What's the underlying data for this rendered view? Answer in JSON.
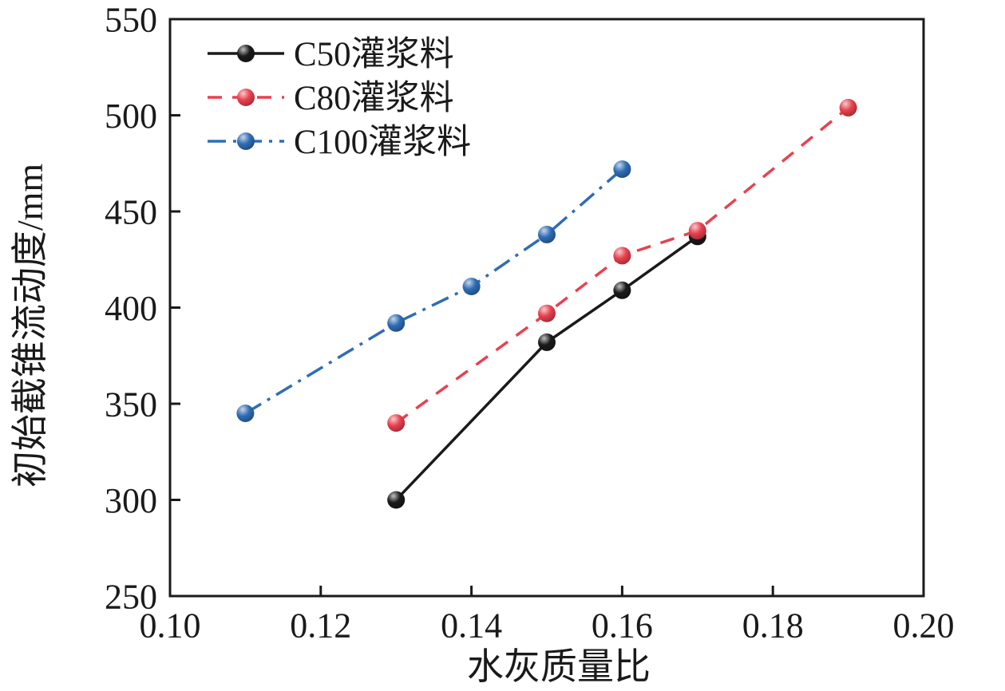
{
  "figure": {
    "background": "#ffffff",
    "text_color": "#1a1a1a"
  },
  "chart_data": {
    "type": "line",
    "title": "",
    "xlabel": "水灰质量比",
    "ylabel": "初始截锥流动度/mm",
    "xlim": [
      0.1,
      0.2
    ],
    "ylim": [
      250,
      550
    ],
    "xticks": [
      0.1,
      0.12,
      0.14,
      0.16,
      0.18,
      0.2
    ],
    "xtick_labels": [
      "0.10",
      "0.12",
      "0.14",
      "0.16",
      "0.18",
      "0.20"
    ],
    "yticks": [
      250,
      300,
      350,
      400,
      450,
      500,
      550
    ],
    "ytick_labels": [
      "250",
      "300",
      "350",
      "400",
      "450",
      "500",
      "550"
    ],
    "grid": false,
    "legend_position": "top-left",
    "series": [
      {
        "name": "C50灌浆料",
        "color": "#1a1a1a",
        "line_style": "solid",
        "marker": "ball",
        "x": [
          0.13,
          0.15,
          0.16,
          0.17
        ],
        "y": [
          300,
          382,
          409,
          437
        ]
      },
      {
        "name": "C80灌浆料",
        "color": "#e8414f",
        "line_style": "dashed",
        "marker": "ball",
        "x": [
          0.13,
          0.15,
          0.16,
          0.17,
          0.19
        ],
        "y": [
          340,
          397,
          427,
          440,
          504
        ]
      },
      {
        "name": "C100灌浆料",
        "color": "#2f6db5",
        "line_style": "dashdot",
        "marker": "ball",
        "x": [
          0.11,
          0.13,
          0.14,
          0.15,
          0.16
        ],
        "y": [
          345,
          392,
          411,
          438,
          472
        ]
      }
    ]
  }
}
